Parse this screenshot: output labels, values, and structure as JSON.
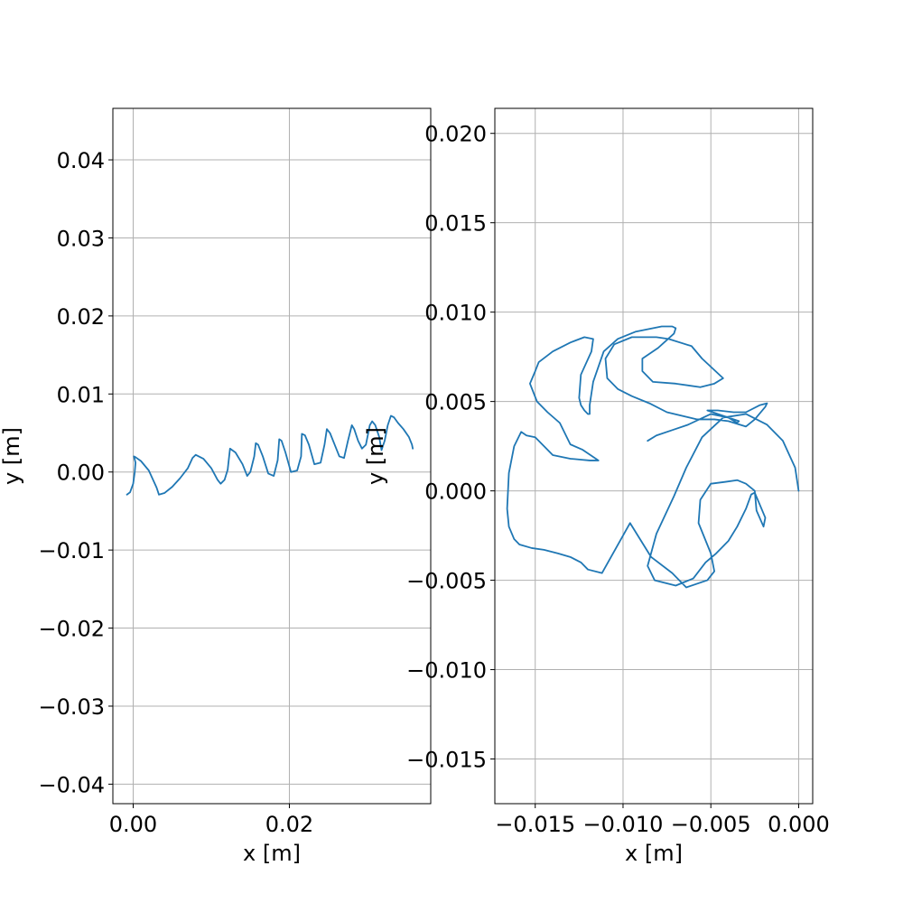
{
  "colors": {
    "series": "#1f77b4",
    "grid": "#b0b0b0",
    "axes": "#000000"
  },
  "chart_data": [
    {
      "type": "line",
      "title": "",
      "xlabel": "x [m]",
      "ylabel": "y [m]",
      "grid": true,
      "xlim": [
        -0.0026,
        0.0381
      ],
      "ylim": [
        -0.0425,
        0.0466
      ],
      "xticks": [
        0.0,
        0.02
      ],
      "xtick_labels": [
        "0.00",
        "0.02"
      ],
      "yticks": [
        -0.04,
        -0.03,
        -0.02,
        -0.01,
        0.0,
        0.01,
        0.02,
        0.03,
        0.04
      ],
      "ytick_labels": [
        "−0.04",
        "−0.03",
        "−0.02",
        "−0.01",
        "0.00",
        "0.01",
        "0.02",
        "0.03",
        "0.04"
      ],
      "series": [
        {
          "x": [
            -0.0008,
            -0.0004,
            0.0,
            0.0002,
            0.0003,
            0.0001,
            0.0003,
            0.001,
            0.002,
            0.003,
            0.0033,
            0.004,
            0.005,
            0.006,
            0.007,
            0.0076,
            0.008,
            0.009,
            0.01,
            0.0108,
            0.0112,
            0.0117,
            0.0121,
            0.0124,
            0.0131,
            0.014,
            0.0146,
            0.015,
            0.0155,
            0.0157,
            0.016,
            0.0166,
            0.0173,
            0.018,
            0.0185,
            0.0187,
            0.019,
            0.0195,
            0.0202,
            0.021,
            0.0215,
            0.0216,
            0.022,
            0.0225,
            0.0232,
            0.024,
            0.0245,
            0.0248,
            0.0252,
            0.0258,
            0.0264,
            0.027,
            0.0275,
            0.028,
            0.0283,
            0.0288,
            0.0293,
            0.0298,
            0.0303,
            0.0306,
            0.031,
            0.0315,
            0.0318,
            0.0322,
            0.0326,
            0.033,
            0.0334,
            0.0339,
            0.0346,
            0.0353,
            0.0357,
            0.0358
          ],
          "y": [
            -0.0029,
            -0.0026,
            -0.0015,
            0.0,
            0.0012,
            0.002,
            0.0019,
            0.0014,
            0.0002,
            -0.002,
            -0.0029,
            -0.0027,
            -0.0019,
            -0.0008,
            0.0005,
            0.0018,
            0.0022,
            0.0017,
            0.0005,
            -0.001,
            -0.0015,
            -0.001,
            0.0003,
            0.003,
            0.0025,
            0.001,
            -0.0005,
            0.0,
            0.002,
            0.0037,
            0.0035,
            0.002,
            -0.0002,
            -0.0005,
            0.0015,
            0.0042,
            0.004,
            0.0025,
            0.0,
            0.0002,
            0.002,
            0.0049,
            0.0047,
            0.0035,
            0.001,
            0.0012,
            0.0035,
            0.0055,
            0.005,
            0.0035,
            0.002,
            0.0018,
            0.004,
            0.006,
            0.0055,
            0.004,
            0.003,
            0.0035,
            0.006,
            0.0065,
            0.006,
            0.0045,
            0.0028,
            0.004,
            0.006,
            0.0072,
            0.007,
            0.0063,
            0.0055,
            0.0045,
            0.0035,
            0.003
          ]
        }
      ]
    },
    {
      "type": "line",
      "title": "",
      "xlabel": "x [m]",
      "ylabel": "y [m]",
      "grid": true,
      "xlim": [
        -0.0173,
        0.0008
      ],
      "ylim": [
        -0.0175,
        0.0214
      ],
      "xticks": [
        -0.015,
        -0.01,
        -0.005,
        0.0
      ],
      "xtick_labels": [
        "−0.015",
        "−0.010",
        "−0.005",
        "0.000"
      ],
      "yticks": [
        -0.015,
        -0.01,
        -0.005,
        0.0,
        0.005,
        0.01,
        0.015,
        0.02
      ],
      "ytick_labels": [
        "−0.015",
        "−0.010",
        "−0.005",
        "0.000",
        "0.005",
        "0.010",
        "0.015",
        "0.020"
      ],
      "series": [
        {
          "x": [
            0.0,
            -0.0002,
            -0.0009,
            -0.0018,
            -0.003,
            -0.0043,
            -0.0055,
            -0.0064,
            -0.0071,
            -0.0081,
            -0.0086,
            -0.0082,
            -0.007,
            -0.006,
            -0.0053,
            -0.0047,
            -0.004,
            -0.0035,
            -0.003,
            -0.0027,
            -0.0025,
            -0.0019,
            -0.002,
            -0.0024,
            -0.0025,
            -0.003,
            -0.0035,
            -0.0042,
            -0.005,
            -0.0056,
            -0.0057,
            -0.005,
            -0.0048,
            -0.0052,
            -0.0064,
            -0.0072,
            -0.0084,
            -0.0096,
            -0.0104,
            -0.0112,
            -0.012,
            -0.0124,
            -0.013,
            -0.0137,
            -0.0145,
            -0.0152,
            -0.0159,
            -0.0162,
            -0.0165,
            -0.0166,
            -0.0165,
            -0.0162,
            -0.0158,
            -0.0155,
            -0.015,
            -0.014,
            -0.013,
            -0.0119,
            -0.0114,
            -0.0123,
            -0.013,
            -0.0132,
            -0.0136,
            -0.0143,
            -0.0149,
            -0.0153,
            -0.015,
            -0.0148,
            -0.014,
            -0.013,
            -0.0122,
            -0.0117,
            -0.0118,
            -0.0124,
            -0.0125,
            -0.0124,
            -0.0122,
            -0.012,
            -0.0119,
            -0.0119,
            -0.0117,
            -0.0111,
            -0.0103,
            -0.0093,
            -0.0078,
            -0.0072,
            -0.007,
            -0.0071,
            -0.008,
            -0.0089,
            -0.0089,
            -0.0083,
            -0.007,
            -0.0056,
            -0.0048,
            -0.0043,
            -0.0055,
            -0.0061,
            -0.0074,
            -0.0081,
            -0.0095,
            -0.0105,
            -0.011,
            -0.0109,
            -0.0103,
            -0.0095,
            -0.0085,
            -0.0075,
            -0.0058,
            -0.0048,
            -0.004,
            -0.003,
            -0.0025,
            -0.0019,
            -0.0018,
            -0.0022,
            -0.003,
            -0.0037,
            -0.0046,
            -0.0052,
            -0.0046,
            -0.0034,
            -0.0035,
            -0.004,
            -0.005,
            -0.0063,
            -0.0072,
            -0.0081,
            -0.0086
          ],
          "y": [
            0.0,
            0.0013,
            0.0028,
            0.0037,
            0.0043,
            0.0041,
            0.003,
            0.0013,
            -0.0003,
            -0.0024,
            -0.0042,
            -0.005,
            -0.0053,
            -0.0049,
            -0.004,
            -0.0035,
            -0.0028,
            -0.002,
            -0.001,
            -0.0002,
            -0.0001,
            -0.0015,
            -0.002,
            -0.0011,
            0.0,
            0.0004,
            0.0006,
            0.0005,
            0.0004,
            -0.0005,
            -0.0018,
            -0.0035,
            -0.0045,
            -0.005,
            -0.0054,
            -0.0046,
            -0.0037,
            -0.0018,
            -0.0032,
            -0.0046,
            -0.0044,
            -0.004,
            -0.0037,
            -0.0035,
            -0.0033,
            -0.0032,
            -0.003,
            -0.0027,
            -0.002,
            -0.001,
            0.001,
            0.0025,
            0.0033,
            0.0031,
            0.003,
            0.002,
            0.0018,
            0.0017,
            0.0017,
            0.0023,
            0.0026,
            0.003,
            0.0038,
            0.0044,
            0.005,
            0.006,
            0.0067,
            0.0072,
            0.0078,
            0.0083,
            0.0086,
            0.0085,
            0.0078,
            0.0065,
            0.0052,
            0.0048,
            0.0045,
            0.0043,
            0.0043,
            0.0048,
            0.0061,
            0.0078,
            0.0085,
            0.0089,
            0.0092,
            0.0092,
            0.0091,
            0.0088,
            0.008,
            0.0074,
            0.0067,
            0.0061,
            0.006,
            0.0058,
            0.006,
            0.0063,
            0.0074,
            0.0081,
            0.0085,
            0.0086,
            0.0086,
            0.0082,
            0.0074,
            0.0063,
            0.0057,
            0.0053,
            0.0049,
            0.0044,
            0.004,
            0.004,
            0.0039,
            0.0036,
            0.004,
            0.0047,
            0.0049,
            0.0048,
            0.0044,
            0.0044,
            0.0045,
            0.0045,
            0.0043,
            0.0039,
            0.0038,
            0.0041,
            0.0043,
            0.0037,
            0.0034,
            0.0031,
            0.0028
          ]
        }
      ]
    }
  ]
}
